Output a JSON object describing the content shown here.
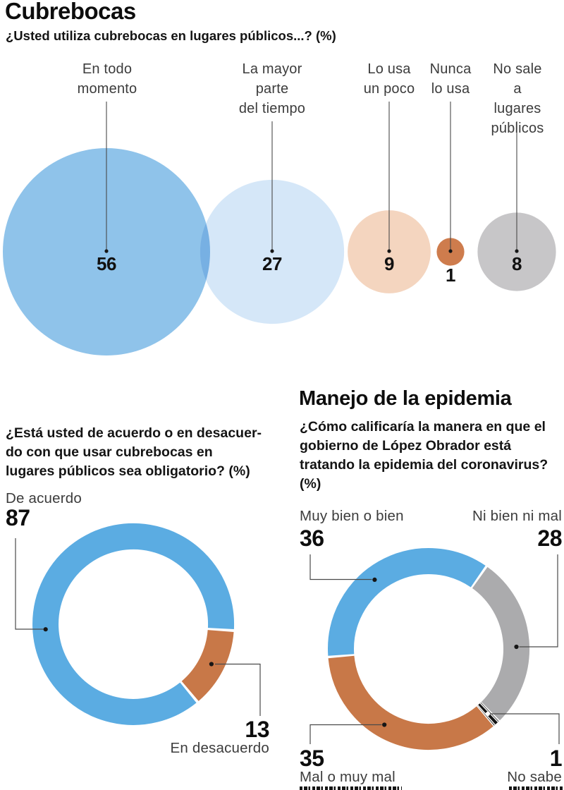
{
  "page": {
    "title": "Cubrebocas",
    "subtitle": "¿Usted utiliza cubrebocas en lugares públicos...? (%)",
    "background": "#ffffff",
    "text_color": "#111111",
    "label_color": "#3c3c3c"
  },
  "chart_data": [
    {
      "id": "uso-de-cubrebocas",
      "type": "bubble",
      "title": "Cubrebocas",
      "question": "¿Usted utiliza cubrebocas en lugares públicos...? (%)",
      "unit": "%",
      "sizing": "area-proportional",
      "categories": [
        "En todo momento",
        "La mayor parte del tiempo",
        "Lo usa un poco",
        "Nunca lo usa",
        "No sale a lugares públicos"
      ],
      "categories_display": [
        "En todo\nmomento",
        "La mayor\nparte\ndel tiempo",
        "Lo usa\nun poco",
        "Nunca\nlo usa",
        "No sale\na lugares\npúblicos"
      ],
      "values": [
        56,
        27,
        9,
        1,
        8
      ],
      "colors": [
        "#8FC3EA",
        "#D5E7F8",
        "#F4D5BF",
        "#CE7C4D",
        "#C7C6C8"
      ]
    },
    {
      "id": "obligatoriedad-cubrebocas",
      "type": "donut",
      "question": "¿Está usted de acuerdo o en desacuerdo con que usar cubrebocas en lugares públicos sea obligatorio? (%)",
      "question_display": "¿Está usted de acuerdo o en desacuer-\ndo con que usar cubrebocas en\nlugares públicos sea obligatorio? (%)",
      "unit": "%",
      "start_angle": 140.4,
      "clockwise": true,
      "segments": [
        {
          "label": "De acuerdo",
          "value": 87,
          "color": "#5BACE2"
        },
        {
          "label": "En desacuerdo",
          "value": 13,
          "color": "#C87848"
        }
      ]
    },
    {
      "id": "manejo-de-la-epidemia",
      "type": "donut",
      "title": "Manejo de la epidemia",
      "question": "¿Cómo calificaría la manera en que el gobierno de López Obrador está tratando la epidemia del coronavirus? (%)",
      "question_display": "¿Cómo calificaría la manera en que el\ngobierno de López Obrador está\ntratando la epidemia del coronavirus?\n(%)",
      "unit": "%",
      "start_angle": 265.4,
      "clockwise": true,
      "segments": [
        {
          "label": "Muy bien o bien",
          "value": 36,
          "color": "#5BACE2"
        },
        {
          "label": "Ni bien ni mal",
          "value": 28,
          "color": "#ABABAD"
        },
        {
          "label": "No sabe",
          "value": 1,
          "color": "#141414",
          "hatched": true
        },
        {
          "label": "Mal o muy mal",
          "value": 35,
          "color": "#C87848"
        }
      ]
    }
  ]
}
